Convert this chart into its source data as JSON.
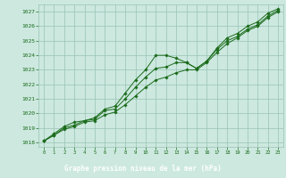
{
  "x": [
    0,
    1,
    2,
    3,
    4,
    5,
    6,
    7,
    8,
    9,
    10,
    11,
    12,
    13,
    14,
    15,
    16,
    17,
    18,
    19,
    20,
    21,
    22,
    23
  ],
  "line1": [
    1018.1,
    1018.6,
    1019.1,
    1019.4,
    1019.5,
    1019.7,
    1020.3,
    1020.5,
    1021.4,
    1022.3,
    1023.0,
    1024.0,
    1024.0,
    1023.8,
    1023.5,
    1023.1,
    1023.6,
    1024.5,
    1025.2,
    1025.5,
    1026.0,
    1026.3,
    1026.9,
    1027.2
  ],
  "line2": [
    1018.1,
    1018.5,
    1019.0,
    1019.2,
    1019.5,
    1019.6,
    1020.2,
    1020.3,
    1021.0,
    1021.8,
    1022.5,
    1023.1,
    1023.2,
    1023.5,
    1023.5,
    1023.1,
    1023.6,
    1024.4,
    1025.0,
    1025.3,
    1025.8,
    1026.1,
    1026.7,
    1027.1
  ],
  "line3": [
    1018.1,
    1018.5,
    1018.9,
    1019.1,
    1019.4,
    1019.5,
    1019.9,
    1020.1,
    1020.6,
    1021.2,
    1021.8,
    1022.3,
    1022.5,
    1022.8,
    1023.0,
    1023.0,
    1023.5,
    1024.2,
    1024.8,
    1025.2,
    1025.7,
    1026.0,
    1026.6,
    1027.0
  ],
  "line_color": "#1a6b1a",
  "bg_color": "#cce8df",
  "plot_bg_color": "#cce8df",
  "bottom_bar_color": "#2d6e2d",
  "grid_color": "#99c4b4",
  "xlabel": "Graphe pression niveau de la mer (hPa)",
  "yticks": [
    1018,
    1019,
    1020,
    1021,
    1022,
    1023,
    1024,
    1025,
    1026,
    1027
  ],
  "xticks": [
    0,
    1,
    2,
    3,
    4,
    5,
    6,
    7,
    8,
    9,
    10,
    11,
    12,
    13,
    14,
    15,
    16,
    17,
    18,
    19,
    20,
    21,
    22,
    23
  ],
  "ylim": [
    1017.7,
    1027.5
  ],
  "xlim": [
    -0.5,
    23.5
  ]
}
